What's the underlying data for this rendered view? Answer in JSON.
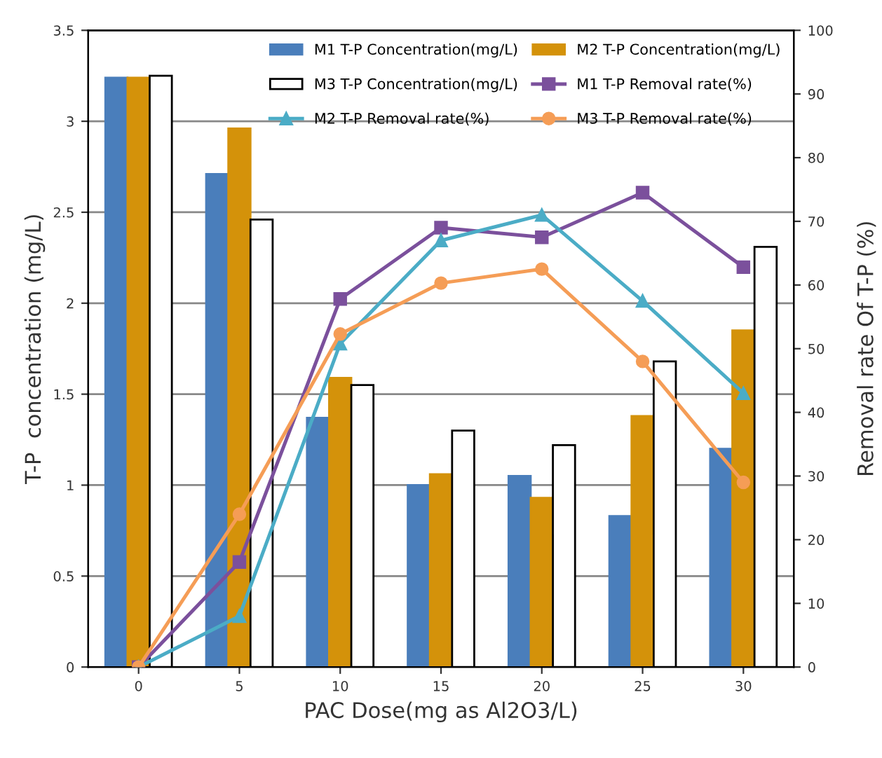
{
  "chart_data": {
    "type": "bar",
    "categories": [
      "0",
      "5",
      "10",
      "15",
      "20",
      "25",
      "30"
    ],
    "xlabel": "PAC Dose(mg as Al2O3/L)",
    "ylabel": "T-P  concentration (mg/L)",
    "y2label": "Removal rate Of T-P (%)",
    "series": [
      {
        "name": "M1 T-P Concentration(mg/L)",
        "color": "#4a7ebb",
        "values": [
          3.24,
          2.71,
          1.37,
          1.0,
          1.05,
          0.83,
          1.2
        ]
      },
      {
        "name": "M2 T-P Concentration(mg/L)",
        "color": "#d4920a",
        "values": [
          3.24,
          2.96,
          1.59,
          1.06,
          0.93,
          1.38,
          1.85
        ]
      },
      {
        "name": "M3 T-P Concentration(mg/L)",
        "color": "#ffffff",
        "values": [
          3.25,
          2.46,
          1.55,
          1.3,
          1.22,
          1.68,
          2.31
        ]
      },
      {
        "name": "M1 T-P Removal rate(%)",
        "type": "line",
        "axis": "y2",
        "marker": "square",
        "color": "#7b509c",
        "values": [
          0,
          16.5,
          57.8,
          69,
          67.5,
          74.5,
          62.8
        ]
      },
      {
        "name": "M2 T-P Removal rate(%)",
        "type": "line",
        "axis": "y2",
        "marker": "triangle",
        "color": "#4bacc6",
        "values": [
          0,
          8,
          50.8,
          67,
          71,
          57.5,
          43
        ]
      },
      {
        "name": "M3 T-P Removal rate(%)",
        "type": "line",
        "axis": "y2",
        "marker": "circle",
        "color": "#f59d56",
        "values": [
          0,
          24,
          52.3,
          60.3,
          62.5,
          48,
          29
        ]
      }
    ],
    "ylim": [
      0,
      3.5
    ],
    "yticks": [
      0,
      0.5,
      1,
      1.5,
      2,
      2.5,
      3,
      3.5
    ],
    "y2lim": [
      0,
      100
    ],
    "y2ticks": [
      0,
      10,
      20,
      30,
      40,
      50,
      60,
      70,
      80,
      90,
      100
    ],
    "grid": "y",
    "legend": "top"
  }
}
